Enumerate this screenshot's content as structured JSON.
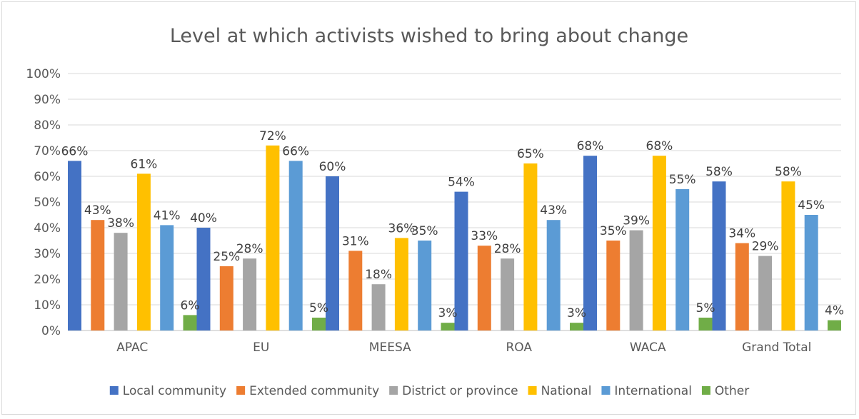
{
  "chart_data": {
    "type": "bar",
    "title": "Level at which activists wished to bring about change",
    "categories": [
      "APAC",
      "EU",
      "MEESA",
      "ROA",
      "WACA",
      "Grand Total"
    ],
    "series": [
      {
        "name": "Local community",
        "color": "#4472c4",
        "values": [
          66,
          40,
          60,
          54,
          68,
          58
        ]
      },
      {
        "name": "Extended community",
        "color": "#ed7d31",
        "values": [
          43,
          25,
          31,
          33,
          35,
          34
        ]
      },
      {
        "name": "District or province",
        "color": "#a5a5a5",
        "values": [
          38,
          28,
          18,
          28,
          39,
          29
        ]
      },
      {
        "name": "National",
        "color": "#ffc000",
        "values": [
          61,
          72,
          36,
          65,
          68,
          58
        ]
      },
      {
        "name": "International",
        "color": "#5b9bd5",
        "values": [
          41,
          66,
          35,
          43,
          55,
          45
        ]
      },
      {
        "name": "Other",
        "color": "#70ad47",
        "values": [
          6,
          5,
          3,
          3,
          5,
          4
        ]
      }
    ],
    "ylim": [
      0,
      100
    ],
    "yticks": [
      0,
      10,
      20,
      30,
      40,
      50,
      60,
      70,
      80,
      90,
      100
    ],
    "ytick_labels": [
      "0%",
      "10%",
      "20%",
      "30%",
      "40%",
      "50%",
      "60%",
      "70%",
      "80%",
      "90%",
      "100%"
    ],
    "value_suffix": "%",
    "grid": true,
    "legend_position": "bottom",
    "xlabel": "",
    "ylabel": ""
  }
}
